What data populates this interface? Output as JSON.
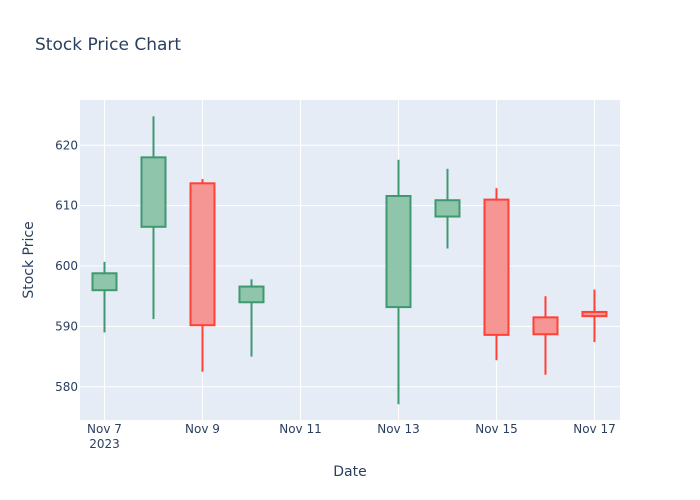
{
  "chart_data": {
    "type": "candlestick",
    "title": "Stock Price Chart",
    "xlabel": "Date",
    "ylabel": "Stock Price",
    "x_ticks": [
      {
        "date": "2023-11-07",
        "label": "Nov 7",
        "sublabel": "2023"
      },
      {
        "date": "2023-11-09",
        "label": "Nov 9",
        "sublabel": ""
      },
      {
        "date": "2023-11-11",
        "label": "Nov 11",
        "sublabel": ""
      },
      {
        "date": "2023-11-13",
        "label": "Nov 13",
        "sublabel": ""
      },
      {
        "date": "2023-11-15",
        "label": "Nov 15",
        "sublabel": ""
      },
      {
        "date": "2023-11-17",
        "label": "Nov 17",
        "sublabel": ""
      }
    ],
    "y_ticks": [
      580,
      590,
      600,
      610,
      620
    ],
    "xlim": [
      "2023-11-06T12:00",
      "2023-11-17T12:30"
    ],
    "ylim": [
      574.5,
      627.5
    ],
    "grid": true,
    "colors": {
      "increasing": "#3d9970",
      "increasing_fill": "#8fc5ab",
      "decreasing": "#ff4136",
      "decreasing_fill": "#f59694",
      "plot_bg": "#e5ecf6",
      "grid": "#ffffff",
      "text": "#2a3f5f"
    },
    "candles": [
      {
        "date": "2023-11-07",
        "open": 596.0,
        "high": 600.7,
        "low": 589.0,
        "close": 598.8
      },
      {
        "date": "2023-11-08",
        "open": 606.5,
        "high": 624.8,
        "low": 591.2,
        "close": 618.0
      },
      {
        "date": "2023-11-09",
        "open": 613.7,
        "high": 614.4,
        "low": 582.5,
        "close": 590.2
      },
      {
        "date": "2023-11-10",
        "open": 594.0,
        "high": 597.8,
        "low": 585.0,
        "close": 596.6
      },
      {
        "date": "2023-11-13",
        "open": 593.2,
        "high": 617.6,
        "low": 577.1,
        "close": 611.6
      },
      {
        "date": "2023-11-14",
        "open": 608.2,
        "high": 616.1,
        "low": 602.9,
        "close": 610.9
      },
      {
        "date": "2023-11-15",
        "open": 611.0,
        "high": 612.9,
        "low": 584.4,
        "close": 588.6
      },
      {
        "date": "2023-11-16",
        "open": 591.5,
        "high": 595.0,
        "low": 582.0,
        "close": 588.7
      },
      {
        "date": "2023-11-17",
        "open": 592.4,
        "high": 596.1,
        "low": 587.4,
        "close": 591.7
      }
    ]
  }
}
